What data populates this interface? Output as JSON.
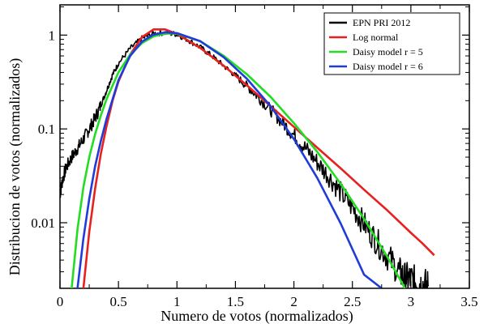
{
  "chart_data": {
    "type": "line",
    "xlabel": "Numero de votos (normalizados)",
    "ylabel": "Distribucion de votos (normalizados)",
    "xlim": [
      0,
      3.5
    ],
    "ylim": [
      0.002,
      2.1
    ],
    "yscale": "log",
    "xticks": [
      0,
      0.5,
      1,
      1.5,
      2,
      2.5,
      3,
      3.5
    ],
    "xtick_labels": [
      "0",
      "0.5",
      "1",
      "1.5",
      "2",
      "2.5",
      "3",
      "3.5"
    ],
    "yticks": [
      0.01,
      0.1,
      1
    ],
    "ytick_labels": [
      "0.01",
      "0.1",
      "1"
    ],
    "grid": false,
    "legend_position": "top-right",
    "series": [
      {
        "name": "EPN PRI 2012",
        "color": "#000000",
        "x": [
          0.0,
          0.02,
          0.05,
          0.1,
          0.15,
          0.2,
          0.25,
          0.3,
          0.35,
          0.4,
          0.45,
          0.5,
          0.6,
          0.7,
          0.8,
          0.9,
          1.0,
          1.1,
          1.2,
          1.3,
          1.4,
          1.5,
          1.6,
          1.7,
          1.8,
          1.9,
          2.0,
          2.1,
          2.2,
          2.3,
          2.4,
          2.5,
          2.6,
          2.7,
          2.8,
          2.9,
          2.95,
          3.0,
          3.05,
          3.1,
          3.15
        ],
        "y": [
          0.02,
          0.028,
          0.038,
          0.05,
          0.062,
          0.078,
          0.1,
          0.13,
          0.18,
          0.26,
          0.38,
          0.5,
          0.72,
          0.92,
          1.04,
          1.06,
          1.02,
          0.88,
          0.74,
          0.6,
          0.47,
          0.37,
          0.285,
          0.215,
          0.16,
          0.118,
          0.086,
          0.062,
          0.044,
          0.031,
          0.021,
          0.0145,
          0.0098,
          0.0065,
          0.0044,
          0.003,
          0.0026,
          0.0025,
          0.0023,
          0.0022,
          0.0021
        ]
      },
      {
        "name": "Log normal",
        "color": "#e8201e",
        "x": [
          0.2,
          0.25,
          0.3,
          0.35,
          0.4,
          0.45,
          0.5,
          0.6,
          0.7,
          0.8,
          0.9,
          1.0,
          1.2,
          1.4,
          1.6,
          1.8,
          2.0,
          2.2,
          2.4,
          2.6,
          2.8,
          3.0,
          3.1,
          3.2
        ],
        "y": [
          0.002,
          0.008,
          0.023,
          0.055,
          0.11,
          0.2,
          0.32,
          0.62,
          0.95,
          1.15,
          1.15,
          1.03,
          0.73,
          0.47,
          0.29,
          0.175,
          0.105,
          0.063,
          0.038,
          0.0225,
          0.0135,
          0.0078,
          0.006,
          0.0045
        ]
      },
      {
        "name": "Daisy model r = 5",
        "color": "#22dd22",
        "x": [
          0.1,
          0.15,
          0.2,
          0.25,
          0.3,
          0.35,
          0.4,
          0.5,
          0.6,
          0.7,
          0.8,
          0.9,
          1.0,
          1.2,
          1.4,
          1.6,
          1.8,
          2.0,
          2.2,
          2.4,
          2.6,
          2.8,
          2.95
        ],
        "y": [
          0.002,
          0.0085,
          0.024,
          0.05,
          0.088,
          0.14,
          0.21,
          0.4,
          0.62,
          0.82,
          0.97,
          1.04,
          1.04,
          0.86,
          0.6,
          0.38,
          0.22,
          0.115,
          0.057,
          0.026,
          0.011,
          0.0043,
          0.002
        ]
      },
      {
        "name": "Daisy model r = 6",
        "color": "#1f3bd8",
        "x": [
          0.15,
          0.2,
          0.25,
          0.3,
          0.35,
          0.4,
          0.5,
          0.6,
          0.7,
          0.8,
          0.9,
          1.0,
          1.2,
          1.4,
          1.6,
          1.8,
          2.0,
          2.2,
          2.4,
          2.6,
          2.75
        ],
        "y": [
          0.002,
          0.0068,
          0.018,
          0.04,
          0.075,
          0.13,
          0.33,
          0.6,
          0.85,
          1.01,
          1.07,
          1.05,
          0.86,
          0.58,
          0.34,
          0.175,
          0.078,
          0.03,
          0.0098,
          0.0028,
          0.002
        ]
      }
    ]
  }
}
